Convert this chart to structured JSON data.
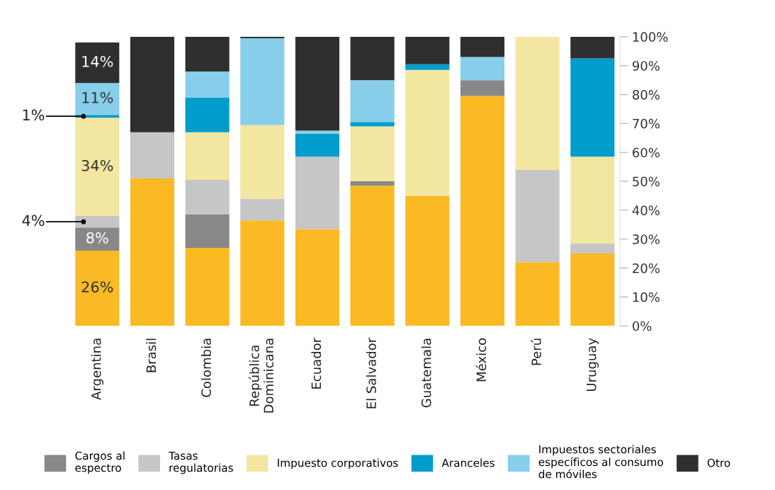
{
  "chart_data": {
    "type": "bar",
    "stacked": true,
    "categories": [
      "Argentina",
      "Brasil",
      "Colombia",
      "República\nDominicana",
      "Ecuador",
      "El Salvador",
      "Guatemala",
      "México",
      "Perú",
      "Uruguay"
    ],
    "ylim": [
      0,
      100
    ],
    "yticks": [
      {
        "value": 0,
        "label": "0%"
      },
      {
        "value": 10,
        "label": "10%"
      },
      {
        "value": 20,
        "label": "20%"
      },
      {
        "value": 30,
        "label": "30%"
      },
      {
        "value": 40,
        "label": "40%"
      },
      {
        "value": 50,
        "label": "50%"
      },
      {
        "value": 60,
        "label": "60%"
      },
      {
        "value": 70,
        "label": "70%"
      },
      {
        "value": 80,
        "label": "80%"
      },
      {
        "value": 90,
        "label": "90%"
      },
      {
        "value": 100,
        "label": "100%"
      }
    ],
    "grid": false,
    "legend": "bottom",
    "series": [
      {
        "color": "#fbb923",
        "values": [
          26,
          51,
          27,
          36.5,
          33.5,
          48.5,
          45,
          79.5,
          22,
          25
        ],
        "value_labels": [
          "26%",
          null,
          null,
          null,
          null,
          null,
          null,
          null,
          null,
          null
        ]
      },
      {
        "name": "Cargos al\nespectro",
        "color": "#888888",
        "values": [
          8,
          0,
          11.5,
          0,
          0,
          1.5,
          0,
          5.5,
          0,
          0
        ],
        "value_labels": [
          "8%",
          null,
          null,
          null,
          null,
          null,
          null,
          null,
          null,
          null
        ]
      },
      {
        "name": "Tasas\nregulatorias",
        "color": "#c6c6c6",
        "values": [
          4,
          16,
          12,
          7.5,
          25,
          0,
          0,
          0,
          32,
          3.5
        ],
        "value_labels": [
          "4%",
          null,
          null,
          null,
          null,
          null,
          null,
          null,
          null,
          null
        ]
      },
      {
        "name": "Impuesto corporativos",
        "color": "#f3e6a0",
        "values": [
          34,
          0,
          16.5,
          25.5,
          0,
          19,
          43.5,
          0,
          46,
          30
        ],
        "value_labels": [
          "34%",
          null,
          null,
          null,
          null,
          null,
          null,
          null,
          null,
          null
        ]
      },
      {
        "name": "Aranceles",
        "color": "#009ccc",
        "values": [
          1,
          0,
          12,
          0,
          8,
          1.5,
          2,
          0,
          0,
          34
        ],
        "value_labels": [
          "1%",
          null,
          null,
          null,
          null,
          null,
          null,
          null,
          null,
          null
        ]
      },
      {
        "name": "Impuestos sectoriales\nespecíficos al consumo\nde móviles",
        "color": "#87ceea",
        "values": [
          11,
          0,
          9,
          30,
          1,
          14.5,
          0,
          8,
          0,
          0
        ],
        "value_labels": [
          "11%",
          null,
          null,
          null,
          null,
          null,
          null,
          null,
          null,
          null
        ]
      },
      {
        "name": "Otro",
        "color": "#2f2f2f",
        "values": [
          14,
          33,
          12,
          0.5,
          32.5,
          15,
          9.5,
          7,
          0,
          7.5
        ],
        "value_labels": [
          "14%",
          null,
          null,
          null,
          null,
          null,
          null,
          null,
          null,
          null
        ]
      }
    ]
  }
}
